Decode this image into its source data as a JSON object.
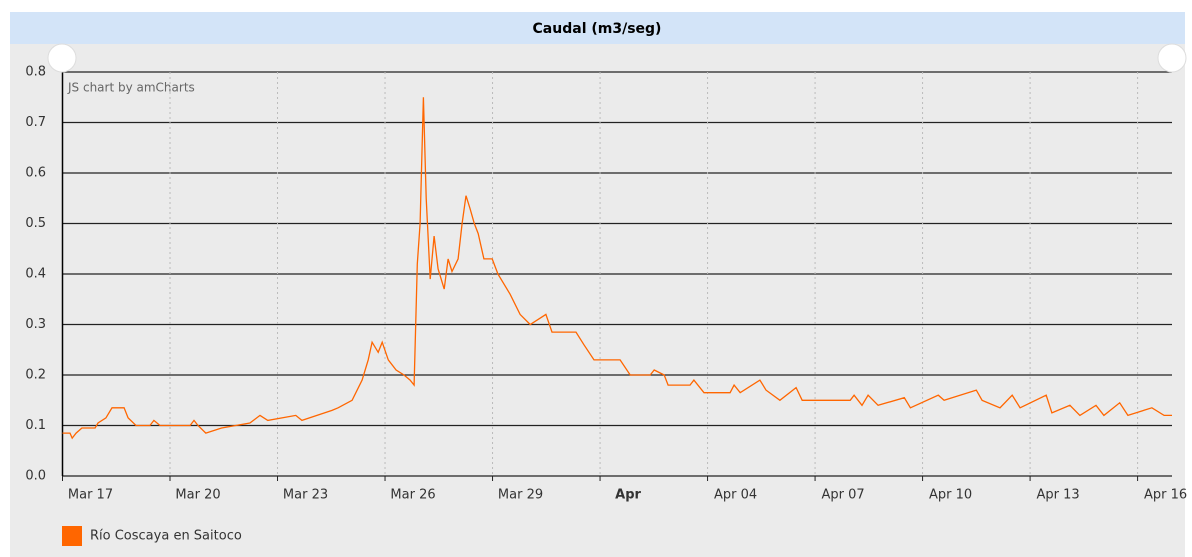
{
  "chart_data": {
    "type": "line",
    "title": "Caudal (m3/seg)",
    "credit": "JS chart by amCharts",
    "xlim": [
      17,
      47.96
    ],
    "ylim": [
      0,
      0.8
    ],
    "yticks": [
      {
        "value": 0,
        "label": "0.0"
      },
      0.1,
      0.2,
      0.3,
      0.4,
      0.5,
      0.6,
      0.7,
      0.8
    ],
    "xticks": [
      {
        "value": 17,
        "label": "Mar 17"
      },
      {
        "value": 20,
        "label": "Mar 20"
      },
      {
        "value": 23,
        "label": "Mar 23"
      },
      {
        "value": 26,
        "label": "Mar 26"
      },
      {
        "value": 29,
        "label": "Mar 29"
      },
      {
        "value": 32,
        "label": "Apr"
      },
      {
        "value": 35,
        "label": "Apr 04"
      },
      {
        "value": 38,
        "label": "Apr 07"
      },
      {
        "value": 41,
        "label": "Apr 10"
      },
      {
        "value": 44,
        "label": "Apr 13"
      },
      {
        "value": 47,
        "label": "Apr 16"
      }
    ],
    "grid": true,
    "legend": "bottom-left",
    "series": [
      {
        "name": "Río Coscaya en Saitoco",
        "color": "#ff6600",
        "x": [
          17.0,
          17.21,
          17.27,
          17.38,
          17.54,
          17.91,
          17.99,
          18.21,
          18.38,
          18.72,
          18.83,
          19.05,
          19.44,
          19.55,
          19.72,
          20.56,
          20.67,
          20.78,
          21.0,
          21.44,
          22.23,
          22.51,
          22.73,
          23.51,
          23.68,
          24.52,
          24.69,
          25.08,
          25.36,
          25.53,
          25.64,
          25.81,
          25.92,
          26.09,
          26.31,
          26.53,
          26.7,
          26.81,
          26.9,
          26.98,
          27.07,
          27.15,
          27.26,
          27.37,
          27.48,
          27.65,
          27.76,
          27.87,
          28.04,
          28.15,
          28.26,
          28.37,
          28.49,
          28.6,
          28.76,
          28.99,
          29.15,
          29.49,
          29.77,
          30.05,
          30.49,
          30.66,
          31.33,
          31.55,
          31.83,
          32.56,
          32.84,
          33.4,
          33.51,
          33.79,
          33.9,
          34.51,
          34.62,
          34.9,
          35.63,
          35.74,
          35.91,
          36.46,
          36.63,
          37.02,
          37.47,
          37.64,
          38.98,
          39.09,
          39.31,
          39.48,
          39.76,
          40.49,
          40.66,
          41.44,
          41.6,
          42.5,
          42.66,
          43.16,
          43.5,
          43.72,
          44.45,
          44.61,
          45.11,
          45.39,
          45.84,
          46.06,
          46.5,
          46.73,
          47.4,
          47.74,
          47.96
        ],
        "values": [
          0.085,
          0.085,
          0.075,
          0.085,
          0.095,
          0.095,
          0.105,
          0.115,
          0.135,
          0.135,
          0.115,
          0.1,
          0.1,
          0.11,
          0.1,
          0.1,
          0.11,
          0.1,
          0.085,
          0.095,
          0.105,
          0.12,
          0.11,
          0.12,
          0.11,
          0.13,
          0.135,
          0.15,
          0.19,
          0.23,
          0.265,
          0.245,
          0.265,
          0.23,
          0.21,
          0.2,
          0.19,
          0.18,
          0.42,
          0.5,
          0.75,
          0.55,
          0.39,
          0.475,
          0.41,
          0.37,
          0.43,
          0.405,
          0.43,
          0.5,
          0.555,
          0.53,
          0.5,
          0.48,
          0.43,
          0.43,
          0.4,
          0.36,
          0.32,
          0.3,
          0.32,
          0.285,
          0.285,
          0.26,
          0.23,
          0.23,
          0.2,
          0.2,
          0.21,
          0.2,
          0.18,
          0.18,
          0.19,
          0.165,
          0.165,
          0.18,
          0.165,
          0.19,
          0.17,
          0.15,
          0.175,
          0.15,
          0.15,
          0.16,
          0.14,
          0.16,
          0.14,
          0.155,
          0.135,
          0.16,
          0.15,
          0.17,
          0.15,
          0.135,
          0.16,
          0.135,
          0.16,
          0.125,
          0.14,
          0.12,
          0.14,
          0.12,
          0.145,
          0.12,
          0.135,
          0.12,
          0.12
        ]
      }
    ]
  }
}
